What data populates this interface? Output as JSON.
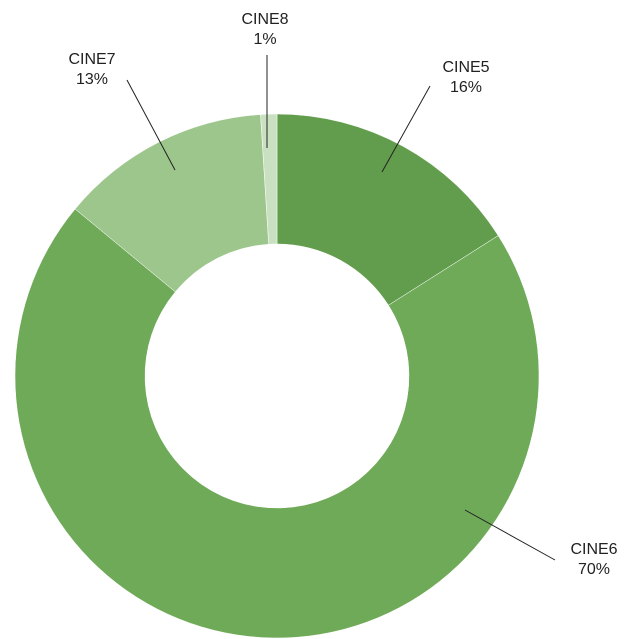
{
  "chart_data": {
    "type": "donut",
    "categories": [
      "CINE5",
      "CINE6",
      "CINE7",
      "CINE8"
    ],
    "values": [
      16,
      70,
      13,
      1
    ],
    "value_labels": [
      "16%",
      "70%",
      "13%",
      "1%"
    ],
    "colors": [
      "#629d4e",
      "#6faa58",
      "#9dc68d",
      "#c9e1c1"
    ]
  }
}
